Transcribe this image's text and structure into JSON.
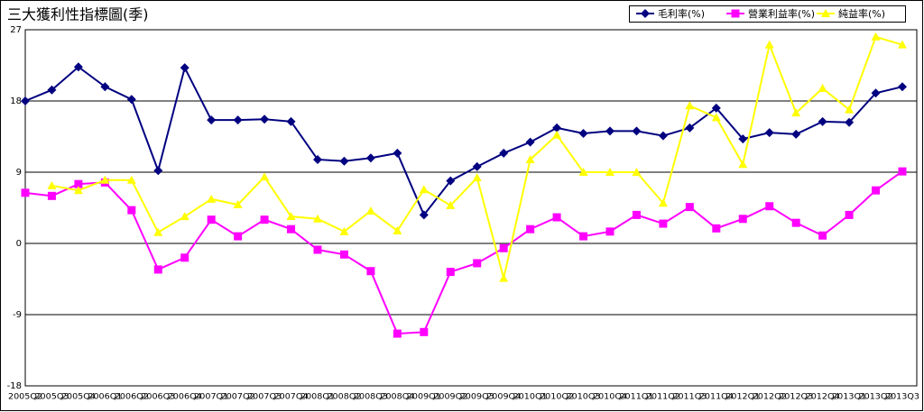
{
  "chart_data": {
    "type": "line",
    "title": "三大獲利性指標圖(季)",
    "categories": [
      "2005Q2",
      "2005Q3",
      "2005Q4",
      "2006Q1",
      "2006Q2",
      "2006Q3",
      "2006Q4",
      "2007Q1",
      "2007Q2",
      "2007Q3",
      "2007Q4",
      "2008Q1",
      "2008Q2",
      "2008Q3",
      "2008Q4",
      "2009Q1",
      "2009Q2",
      "2009Q3",
      "2009Q4",
      "2010Q1",
      "2010Q2",
      "2010Q3",
      "2010Q4",
      "2011Q1",
      "2011Q2",
      "2011Q3",
      "2011Q4",
      "2012Q1",
      "2012Q2",
      "2012Q3",
      "2012Q4",
      "2013Q1",
      "2013Q2",
      "2013Q3"
    ],
    "series": [
      {
        "name": "毛利率(%)",
        "color": "#000080",
        "marker": "diamond",
        "values": [
          18.0,
          19.4,
          22.3,
          19.8,
          18.2,
          9.2,
          22.2,
          15.6,
          15.6,
          15.7,
          15.4,
          10.6,
          10.4,
          10.8,
          11.4,
          3.6,
          7.9,
          9.7,
          11.4,
          12.8,
          14.6,
          13.9,
          14.2,
          14.2,
          13.6,
          14.6,
          17.1,
          13.2,
          14.0,
          13.8,
          15.4,
          15.3,
          19.0,
          19.8
        ]
      },
      {
        "name": "營業利益率(%)",
        "color": "#ff00ff",
        "marker": "square",
        "values": [
          6.4,
          6.0,
          7.5,
          7.7,
          4.2,
          -3.3,
          -1.8,
          3.0,
          0.9,
          3.0,
          1.8,
          -0.8,
          -1.4,
          -3.5,
          -11.4,
          -11.2,
          -3.6,
          -2.5,
          -0.6,
          1.8,
          3.3,
          0.9,
          1.5,
          3.6,
          2.5,
          4.6,
          1.9,
          3.1,
          4.7,
          2.6,
          1.0,
          3.6,
          6.7,
          9.1
        ]
      },
      {
        "name": "純益率(%)",
        "color": "#ffff00",
        "marker": "triangle",
        "values": [
          null,
          7.3,
          6.7,
          8.0,
          8.0,
          1.4,
          3.4,
          5.6,
          4.9,
          8.4,
          3.4,
          3.1,
          1.5,
          4.1,
          1.6,
          6.8,
          4.8,
          8.3,
          -4.4,
          10.6,
          13.7,
          9.0,
          9.0,
          9.0,
          5.1,
          17.4,
          15.9,
          10.0,
          25.1,
          16.5,
          19.6,
          16.9,
          26.1,
          25.1
        ]
      }
    ],
    "ylim": [
      -18,
      27
    ],
    "yticks": [
      -18,
      -9,
      0,
      9,
      18,
      27
    ],
    "grid": true,
    "legend": "top-right"
  }
}
